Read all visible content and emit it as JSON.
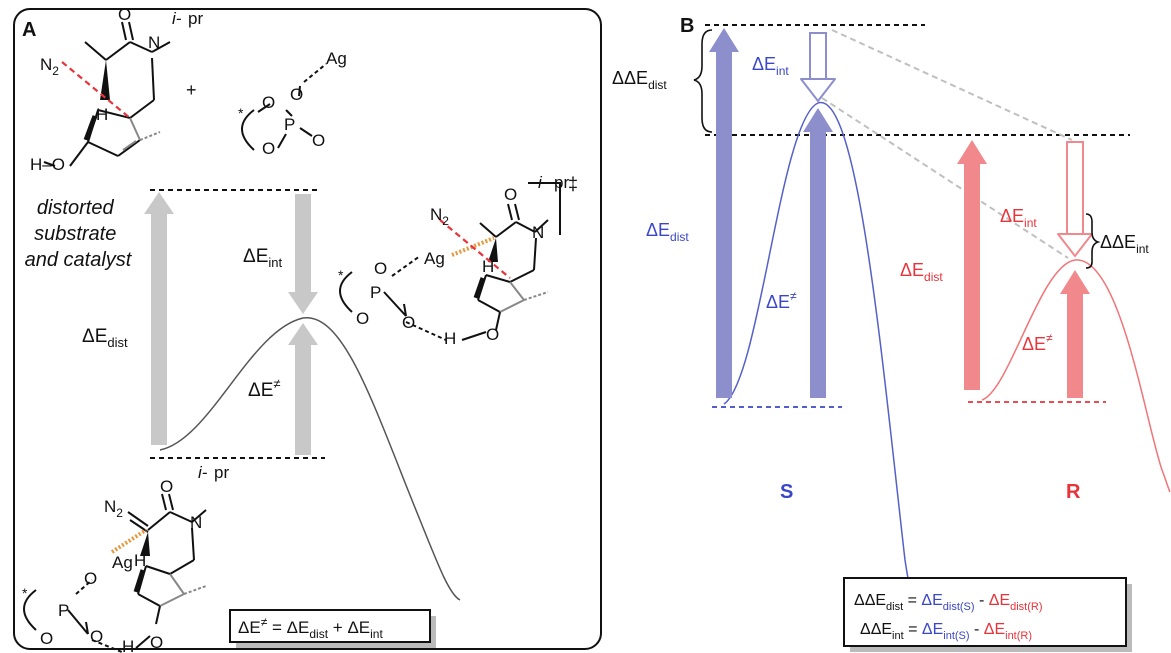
{
  "colors": {
    "blue": "#3a46c8",
    "blue_arrow": "#8c8fcc",
    "red": "#e8333a",
    "red_arrow": "#f1888c",
    "gray_arrow": "#c8c8c8"
  },
  "panel_a": {
    "letter": "A",
    "distorted_label": [
      "distorted",
      "substrate",
      "and catalyst"
    ],
    "delta_e_dist": {
      "delta": "ΔE",
      "sub": "dist"
    },
    "delta_e_int": {
      "delta": "ΔE",
      "sub": "int"
    },
    "delta_e_barrier": {
      "delta": "ΔE",
      "sup": "≠"
    },
    "dagger": "‡",
    "plus": "+",
    "molecule_text": {
      "n2": "N",
      "n2_sub": "2",
      "o": "O",
      "n": "N",
      "h": "H",
      "i_pr": "i-",
      "pr": "pr",
      "ho": "H–O",
      "ag": "Ag",
      "p": "P",
      "star": "*"
    },
    "equation": {
      "lhs": "ΔE",
      "lhs_sup": "≠",
      "eq": " = ",
      "t1": "ΔE",
      "t1_sub": "dist",
      "plus": " + ",
      "t2": "ΔE",
      "t2_sub": "int"
    }
  },
  "panel_b": {
    "letter": "B",
    "dde_dist": {
      "delta": "ΔΔE",
      "sub": "dist"
    },
    "dde_int": {
      "delta": "ΔΔE",
      "sub": "int"
    },
    "s_de_int": {
      "delta": "ΔE",
      "sub": "int"
    },
    "s_de_dist": {
      "delta": "ΔE",
      "sub": "dist"
    },
    "s_de_barrier": {
      "delta": "ΔE",
      "sup": "≠"
    },
    "r_de_int": {
      "delta": "ΔE",
      "sub": "int"
    },
    "r_de_dist": {
      "delta": "ΔE",
      "sub": "dist"
    },
    "r_de_barrier": {
      "delta": "ΔE",
      "sup": "≠"
    },
    "label_s": "S",
    "label_r": "R",
    "equations": {
      "line1": {
        "lhs": "ΔΔE",
        "lhs_sub": "dist",
        "eq": " = ",
        "a": "ΔE",
        "a_sub": "dist(S)",
        "minus": " - ",
        "b": "ΔE",
        "b_sub": "dist(R)"
      },
      "line2": {
        "lhs": "ΔΔE",
        "lhs_sub": "int",
        "eq": " = ",
        "a": "ΔE",
        "a_sub": "int(S)",
        "minus": " - ",
        "b": "ΔE",
        "b_sub": "int(R)"
      }
    }
  }
}
